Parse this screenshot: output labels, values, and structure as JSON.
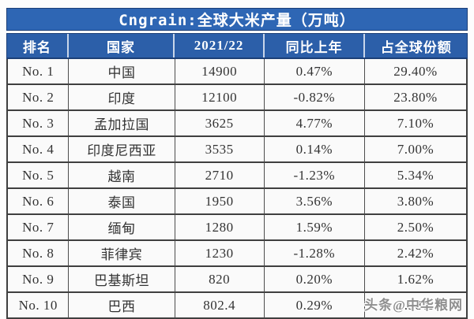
{
  "page": {
    "title": "Cngrain:全球大米产量（万吨）"
  },
  "watermark": {
    "text": "头条@中华粮网"
  },
  "colors": {
    "title_bar_blue": "#2e66b4",
    "header_blue": "#2c5fa9",
    "border_navy": "#1c3f77",
    "row_border_dark": "#3f3f3f",
    "body_text": "#333333",
    "watermark_gray": "#8f8f8f"
  },
  "chart_data": {
    "type": "table",
    "title": "Cngrain:全球大米产量（万吨）",
    "columns": [
      "排名",
      "国家",
      "2021/22",
      "同比上年",
      "占全球份额"
    ],
    "rows": [
      [
        "No. 1",
        "中国",
        "14900",
        "0.47%",
        "29.40%"
      ],
      [
        "No. 2",
        "印度",
        "12100",
        "-0.82%",
        "23.80%"
      ],
      [
        "No. 3",
        "孟加拉国",
        "3625",
        "4.77%",
        "7.10%"
      ],
      [
        "No. 4",
        "印度尼西亚",
        "3535",
        "0.14%",
        "7.00%"
      ],
      [
        "No. 5",
        "越南",
        "2710",
        "-1.23%",
        "5.34%"
      ],
      [
        "No. 6",
        "泰国",
        "1950",
        "3.56%",
        "3.80%"
      ],
      [
        "No. 7",
        "缅甸",
        "1280",
        "1.59%",
        "2.50%"
      ],
      [
        "No. 8",
        "菲律宾",
        "1230",
        "-1.28%",
        "2.42%"
      ],
      [
        "No. 9",
        "巴基斯坦",
        "820",
        "0.20%",
        "1.62%"
      ],
      [
        "No. 10",
        "巴西",
        "802.4",
        "0.29%",
        "1.58%"
      ]
    ]
  }
}
